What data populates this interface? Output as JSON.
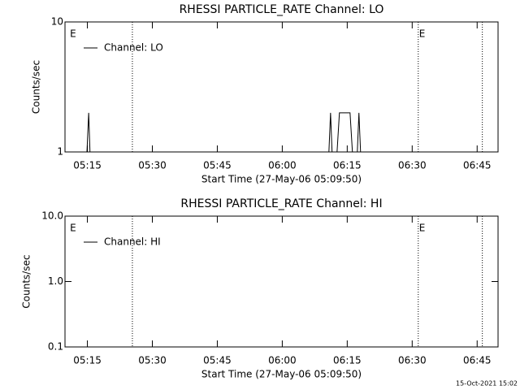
{
  "chart_data": [
    {
      "type": "line",
      "title": "RHESSI PARTICLE_RATE Channel: LO",
      "xlabel": "Start Time (27-May-06 05:09:50)",
      "ylabel": "Counts/sec",
      "log_y": true,
      "ylim": [
        1,
        10
      ],
      "yticks": [
        1,
        10
      ],
      "xlim": [
        309.83,
        409.83
      ],
      "xticks": [
        {
          "value": 315,
          "label": "05:15"
        },
        {
          "value": 330,
          "label": "05:30"
        },
        {
          "value": 345,
          "label": "05:45"
        },
        {
          "value": 360,
          "label": "06:00"
        },
        {
          "value": 375,
          "label": "06:15"
        },
        {
          "value": 390,
          "label": "06:30"
        },
        {
          "value": 405,
          "label": "06:45"
        }
      ],
      "vlines": [
        325.39,
        391.4,
        406.2
      ],
      "annotations": [
        {
          "text": "E",
          "x": 310.8
        },
        {
          "text": "E",
          "x": 391.4
        }
      ],
      "legend": "upper left",
      "series": [
        {
          "name": "Channel: LO",
          "color": "#000000",
          "x": [
            309.83,
            314.9,
            315.3,
            315.6,
            370.77,
            371.15,
            371.5,
            372.65,
            373.2,
            375.65,
            376.2,
            377.33,
            377.7,
            378.08,
            409.83
          ],
          "values": [
            1,
            1,
            2,
            1,
            1,
            2,
            1,
            1,
            2,
            2,
            1,
            1,
            2,
            1,
            1
          ]
        }
      ]
    },
    {
      "type": "line",
      "title": "RHESSI PARTICLE_RATE Channel: HI",
      "xlabel": "Start Time (27-May-06 05:09:50)",
      "ylabel": "Counts/sec",
      "log_y": true,
      "ylim": [
        0.1,
        10
      ],
      "yticks": [
        {
          "value": 0.1,
          "label": "0.1"
        },
        {
          "value": 1,
          "label": "1.0"
        },
        {
          "value": 10,
          "label": "10.0"
        }
      ],
      "xlim": [
        309.83,
        409.83
      ],
      "xticks": [
        {
          "value": 315,
          "label": "05:15"
        },
        {
          "value": 330,
          "label": "05:30"
        },
        {
          "value": 345,
          "label": "05:45"
        },
        {
          "value": 360,
          "label": "06:00"
        },
        {
          "value": 375,
          "label": "06:15"
        },
        {
          "value": 390,
          "label": "06:30"
        },
        {
          "value": 405,
          "label": "06:45"
        }
      ],
      "vlines": [
        325.39,
        391.4,
        406.2
      ],
      "annotations": [
        {
          "text": "E",
          "x": 310.8
        },
        {
          "text": "E",
          "x": 391.4
        }
      ],
      "legend": "upper left",
      "series": [
        {
          "name": "Channel: HI",
          "color": "#000000",
          "x": [],
          "values": []
        }
      ]
    }
  ],
  "footer": "15-Oct-2021 15:02"
}
